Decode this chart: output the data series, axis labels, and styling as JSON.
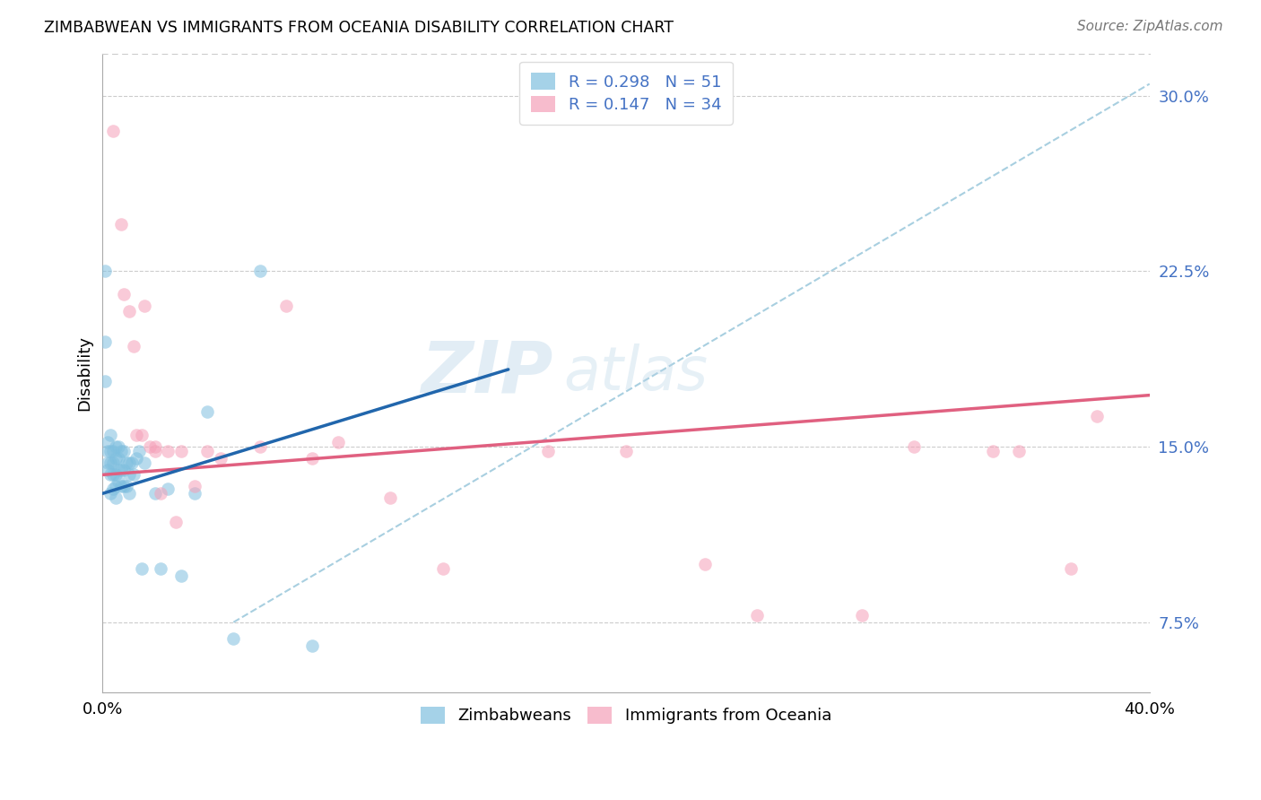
{
  "title": "ZIMBABWEAN VS IMMIGRANTS FROM OCEANIA DISABILITY CORRELATION CHART",
  "source": "Source: ZipAtlas.com",
  "ylabel": "Disability",
  "yticks": [
    0.075,
    0.15,
    0.225,
    0.3
  ],
  "ytick_labels": [
    "7.5%",
    "15.0%",
    "22.5%",
    "30.0%"
  ],
  "xlim": [
    0.0,
    0.4
  ],
  "ylim": [
    0.045,
    0.318
  ],
  "blue_color": "#7fbfdf",
  "pink_color": "#f5a0b8",
  "blue_line_color": "#2166ac",
  "pink_line_color": "#e06080",
  "dashed_line_color": "#a8cfe0",
  "watermark_zip": "ZIP",
  "watermark_atlas": "atlas",
  "blue_scatter_x": [
    0.001,
    0.001,
    0.001,
    0.002,
    0.002,
    0.002,
    0.002,
    0.003,
    0.003,
    0.003,
    0.003,
    0.003,
    0.004,
    0.004,
    0.004,
    0.004,
    0.005,
    0.005,
    0.005,
    0.005,
    0.005,
    0.006,
    0.006,
    0.006,
    0.006,
    0.007,
    0.007,
    0.007,
    0.008,
    0.008,
    0.008,
    0.009,
    0.009,
    0.01,
    0.01,
    0.01,
    0.011,
    0.012,
    0.013,
    0.014,
    0.015,
    0.016,
    0.02,
    0.022,
    0.025,
    0.03,
    0.035,
    0.04,
    0.05,
    0.06,
    0.08
  ],
  "blue_scatter_y": [
    0.225,
    0.195,
    0.178,
    0.143,
    0.148,
    0.152,
    0.14,
    0.155,
    0.148,
    0.143,
    0.138,
    0.13,
    0.148,
    0.143,
    0.138,
    0.132,
    0.15,
    0.145,
    0.138,
    0.133,
    0.128,
    0.15,
    0.145,
    0.14,
    0.135,
    0.148,
    0.14,
    0.133,
    0.148,
    0.14,
    0.133,
    0.143,
    0.133,
    0.143,
    0.138,
    0.13,
    0.143,
    0.138,
    0.145,
    0.148,
    0.098,
    0.143,
    0.13,
    0.098,
    0.132,
    0.095,
    0.13,
    0.165,
    0.068,
    0.225,
    0.065
  ],
  "pink_scatter_x": [
    0.004,
    0.007,
    0.008,
    0.01,
    0.012,
    0.013,
    0.015,
    0.016,
    0.018,
    0.02,
    0.02,
    0.022,
    0.025,
    0.028,
    0.03,
    0.035,
    0.04,
    0.045,
    0.06,
    0.07,
    0.08,
    0.09,
    0.11,
    0.13,
    0.17,
    0.2,
    0.23,
    0.25,
    0.29,
    0.31,
    0.34,
    0.35,
    0.37,
    0.38
  ],
  "pink_scatter_y": [
    0.285,
    0.245,
    0.215,
    0.208,
    0.193,
    0.155,
    0.155,
    0.21,
    0.15,
    0.15,
    0.148,
    0.13,
    0.148,
    0.118,
    0.148,
    0.133,
    0.148,
    0.145,
    0.15,
    0.21,
    0.145,
    0.152,
    0.128,
    0.098,
    0.148,
    0.148,
    0.1,
    0.078,
    0.078,
    0.15,
    0.148,
    0.148,
    0.098,
    0.163
  ],
  "blue_line_x": [
    0.0,
    0.155
  ],
  "blue_line_y": [
    0.13,
    0.183
  ],
  "pink_line_x": [
    0.0,
    0.4
  ],
  "pink_line_y": [
    0.138,
    0.172
  ],
  "dashed_line_x": [
    0.05,
    0.4
  ],
  "dashed_line_y": [
    0.075,
    0.305
  ]
}
